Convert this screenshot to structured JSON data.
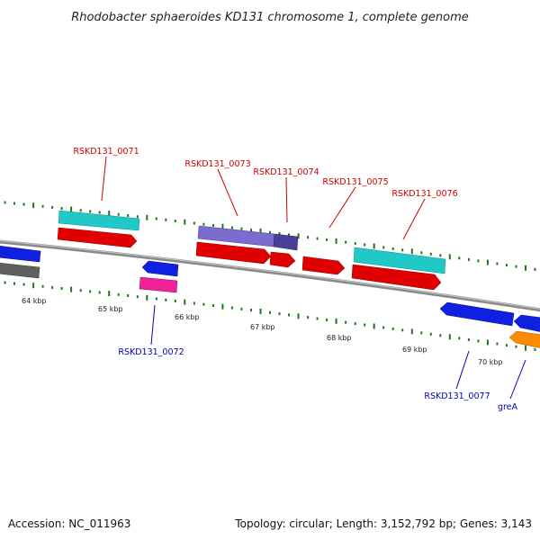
{
  "title": "Rhodobacter sphaeroides KD131 chromosome 1, complete genome",
  "footer": {
    "accession": "Accession: NC_011963",
    "summary": "Topology: circular; Length: 3,152,792 bp; Genes: 3,143"
  },
  "colors": {
    "plus_label": "#cc0000",
    "minus_label": "#0000bb",
    "backbone": "#8a8a8a",
    "tick": "#1a7a1a"
  },
  "scale": {
    "labels": [
      "64 kbp",
      "65 kbp",
      "66 kbp",
      "67 kbp",
      "68 kbp",
      "69 kbp",
      "70 kbp"
    ]
  },
  "features": [
    {
      "id": "f-blue-left",
      "label": "",
      "color": "#1020e0",
      "strand": "minus"
    },
    {
      "id": "f-grey-left",
      "label": "",
      "color": "#606060",
      "strand": "none"
    },
    {
      "id": "f-0071-cds",
      "label": "",
      "color": "#e00000",
      "strand": "plus"
    },
    {
      "id": "f-0071-gene",
      "label": "RSKD131_0071",
      "color": "#20c8c8",
      "strand": "plus"
    },
    {
      "id": "f-0072-cds",
      "label": "RSKD131_0072",
      "color": "#1020e0",
      "strand": "minus"
    },
    {
      "id": "f-0072-rna",
      "label": "",
      "color": "#f0209a",
      "strand": "minus"
    },
    {
      "id": "f-0073-gene",
      "label": "RSKD131_0073",
      "color": "#7c6cd0",
      "strand": "plus"
    },
    {
      "id": "f-0073-cds",
      "label": "",
      "color": "#e00000",
      "strand": "plus"
    },
    {
      "id": "f-0074-gene",
      "label": "RSKD131_0074",
      "color": "#4a3e9a",
      "strand": "plus"
    },
    {
      "id": "f-0074-cds",
      "label": "",
      "color": "#e00000",
      "strand": "plus"
    },
    {
      "id": "f-0075-cds",
      "label": "RSKD131_0075",
      "color": "#e00000",
      "strand": "plus"
    },
    {
      "id": "f-0076-gene",
      "label": "RSKD131_0076",
      "color": "#20c8c8",
      "strand": "plus"
    },
    {
      "id": "f-0076-cds",
      "label": "",
      "color": "#e00000",
      "strand": "plus"
    },
    {
      "id": "f-0077-cds",
      "label": "RSKD131_0077",
      "color": "#1020e0",
      "strand": "minus"
    },
    {
      "id": "f-grea-cds",
      "label": "greA",
      "color": "#1020e0",
      "strand": "minus"
    },
    {
      "id": "f-grea-gene",
      "label": "",
      "color": "#ff8c00",
      "strand": "minus"
    }
  ]
}
